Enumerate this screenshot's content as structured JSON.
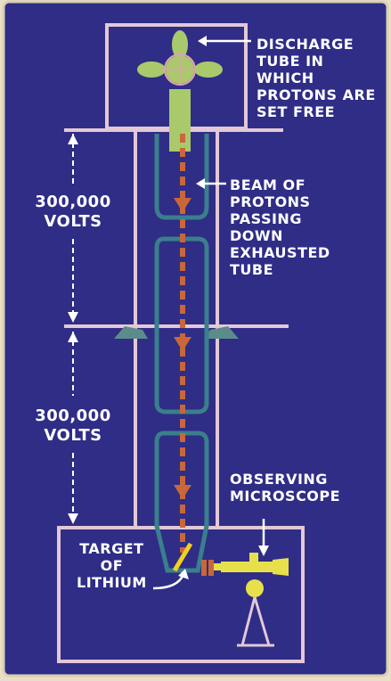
{
  "labels": {
    "discharge": [
      "DISCHARGE",
      "TUBE IN",
      "WHICH",
      "PROTONS ARE",
      "SET FREE"
    ],
    "beam": [
      "BEAM OF",
      "PROTONS",
      "PASSING",
      "DOWN",
      "EXHAUSTED",
      "TUBE"
    ],
    "volts_upper": [
      "300,000",
      "VOLTS"
    ],
    "volts_lower": [
      "300,000",
      "VOLTS"
    ],
    "observing": [
      "OBSERVING",
      "MICROSCOPE"
    ],
    "target": [
      "TARGET",
      "OF",
      "LITHIUM"
    ]
  },
  "colors": {
    "background": "#2f2d86",
    "frame": "#e3c8d6",
    "tube": "#3a7f8c",
    "beam": "#c8673a",
    "discharge_electrode": "#a9c96b",
    "microscope": "#e8e04a",
    "text": "#ffffff"
  }
}
